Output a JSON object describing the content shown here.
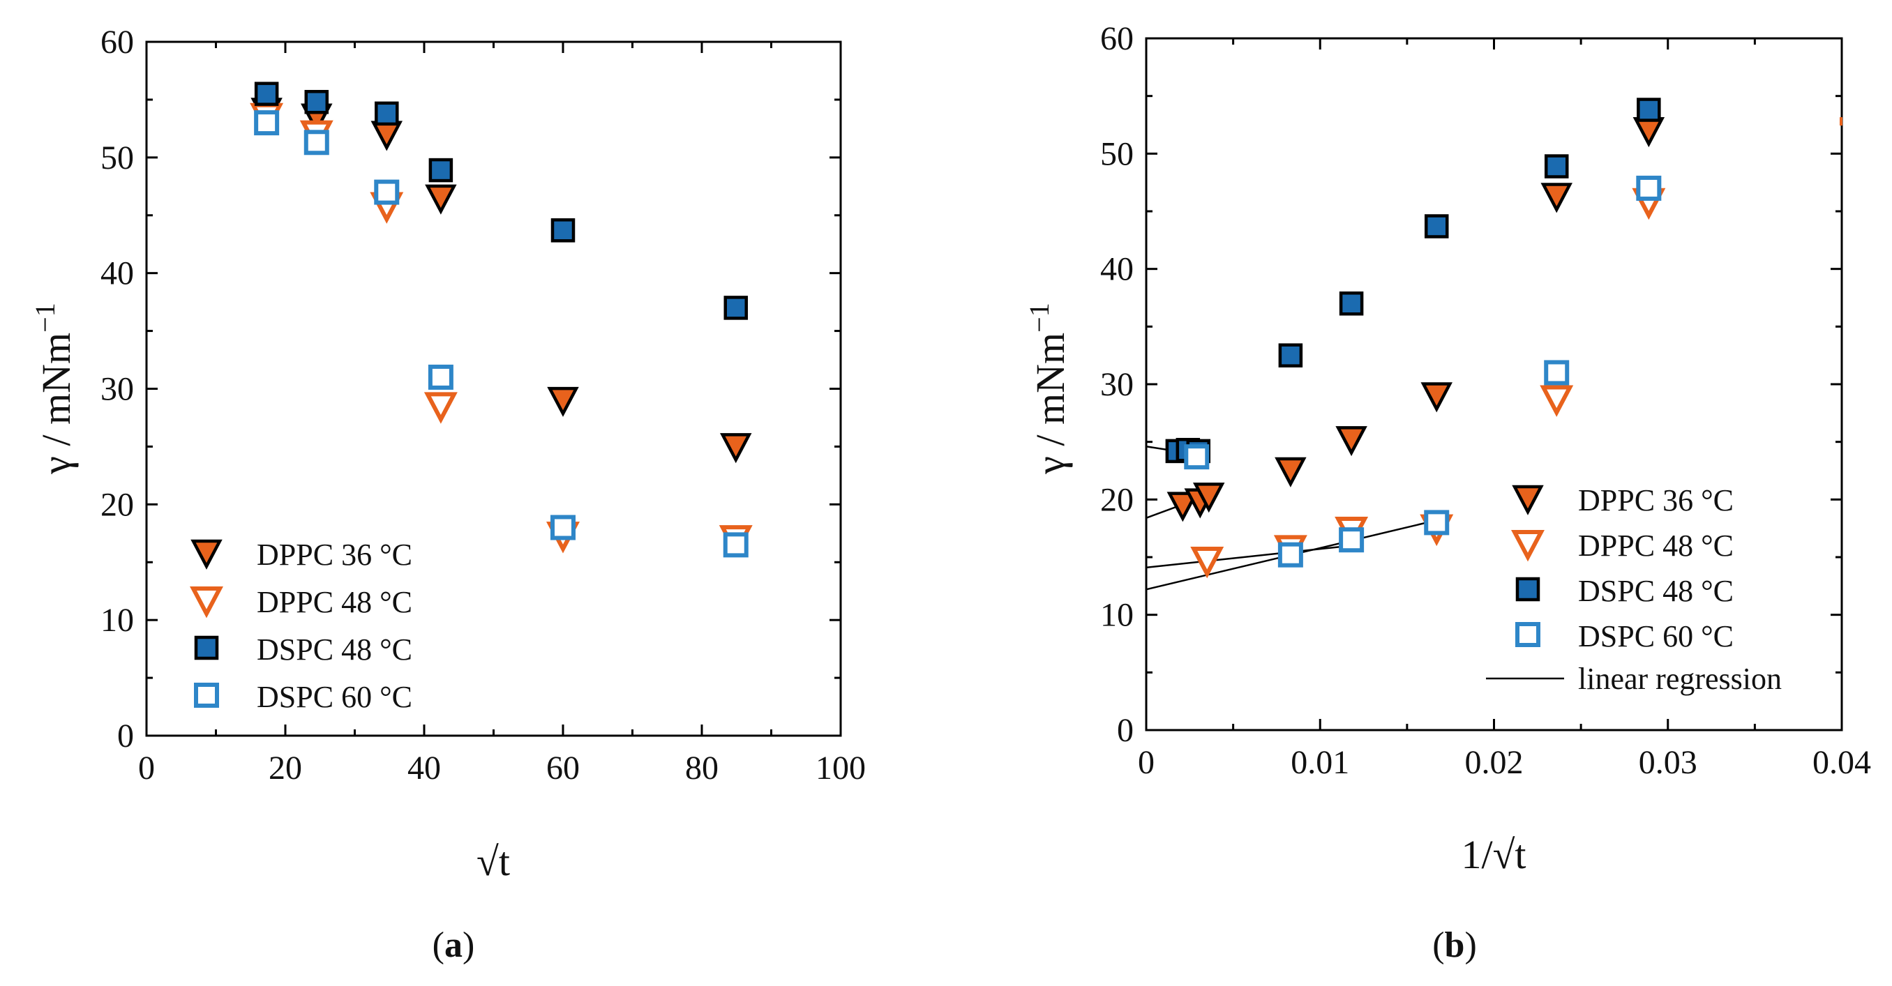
{
  "chart_data": [
    {
      "panel": "a",
      "type": "scatter",
      "caption": "a",
      "xlabel": "√t",
      "ylabel": "γ / mNm",
      "ylabel_sup": "−1",
      "xlim": [
        0,
        100
      ],
      "ylim": [
        0,
        60
      ],
      "xticks": [
        0,
        20,
        40,
        60,
        80,
        100
      ],
      "yticks": [
        0,
        10,
        20,
        30,
        40,
        50,
        60
      ],
      "legend_position": "lower-left",
      "series": [
        {
          "name": "DPPC 36 °C",
          "marker": "triangle-down-filled",
          "x": [
            17.3,
            24.5,
            34.6,
            42.4,
            60.0,
            84.9
          ],
          "y": [
            54.0,
            53.5,
            52.0,
            46.5,
            29.0,
            25.0
          ]
        },
        {
          "name": "DPPC 48 °C",
          "marker": "triangle-down-open",
          "x": [
            17.3,
            24.5,
            34.6,
            42.4,
            60.0,
            84.9
          ],
          "y": [
            53.5,
            52.0,
            45.8,
            28.5,
            17.3,
            17.0
          ]
        },
        {
          "name": "DSPC 48 °C",
          "marker": "square-filled",
          "x": [
            17.3,
            24.5,
            34.6,
            42.4,
            60.0,
            84.9
          ],
          "y": [
            55.5,
            54.8,
            53.8,
            48.9,
            43.7,
            37.0
          ]
        },
        {
          "name": "DSPC 60 °C",
          "marker": "square-open",
          "x": [
            17.3,
            24.5,
            34.6,
            42.4,
            60.0,
            84.9
          ],
          "y": [
            53.0,
            51.3,
            47.0,
            31.0,
            18.0,
            16.5
          ]
        }
      ]
    },
    {
      "panel": "b",
      "type": "scatter",
      "caption": "b",
      "xlabel": "1/√t",
      "ylabel": "γ / mNm",
      "ylabel_sup": "−1",
      "xlim": [
        0,
        0.04
      ],
      "ylim": [
        0,
        60
      ],
      "xticks": [
        0,
        0.01,
        0.02,
        0.03,
        0.04
      ],
      "xtick_labels": [
        "0",
        "0.01",
        "0.02",
        "0.03",
        "0.04"
      ],
      "yticks": [
        0,
        10,
        20,
        30,
        40,
        50,
        60
      ],
      "legend_position": "lower-right",
      "series": [
        {
          "name": "DPPC 36 °C",
          "marker": "triangle-down-filled",
          "x": [
            0.0021,
            0.0031,
            0.0036,
            0.0083,
            0.0118,
            0.0167,
            0.0236,
            0.0289
          ],
          "y": [
            19.5,
            19.8,
            20.3,
            22.5,
            25.2,
            29.0,
            46.3,
            52.0
          ]
        },
        {
          "name": "DPPC 48 °C",
          "marker": "triangle-down-open",
          "x": [
            0.0035,
            0.0083,
            0.0118,
            0.0167,
            0.0236,
            0.0289
          ],
          "y": [
            14.7,
            15.7,
            17.3,
            17.5,
            28.7,
            45.8
          ]
        },
        {
          "name": "DSPC 48 °C",
          "marker": "square-filled",
          "x": [
            0.0018,
            0.0024,
            0.003,
            0.0083,
            0.0118,
            0.0167,
            0.0236,
            0.0289
          ],
          "y": [
            24.2,
            24.3,
            24.2,
            32.5,
            37.0,
            43.7,
            48.9,
            53.8
          ]
        },
        {
          "name": "DSPC 60 °C",
          "marker": "square-open",
          "x": [
            0.0029,
            0.0083,
            0.0118,
            0.0167,
            0.0236,
            0.0289
          ],
          "y": [
            23.7,
            15.2,
            16.5,
            18.0,
            31.0,
            47.0
          ]
        }
      ],
      "regression_lines": [
        {
          "name": "DSPC 48 °C fit",
          "x": [
            0,
            0.003
          ],
          "y": [
            24.6,
            23.9
          ]
        },
        {
          "name": "DPPC 36 °C fit",
          "x": [
            0,
            0.0036
          ],
          "y": [
            18.4,
            20.4
          ]
        },
        {
          "name": "DPPC 48 °C fit",
          "x": [
            0,
            0.0118
          ],
          "y": [
            14.1,
            16.0
          ]
        },
        {
          "name": "DSPC 60 °C fit",
          "x": [
            0,
            0.0167
          ],
          "y": [
            12.2,
            18.2
          ]
        }
      ],
      "legend_line_label": "linear regression"
    }
  ],
  "colors": {
    "orange": "#e8621c",
    "blue_fill": "#1b6bb0",
    "blue_open": "#2e86c8",
    "black": "#000000"
  }
}
